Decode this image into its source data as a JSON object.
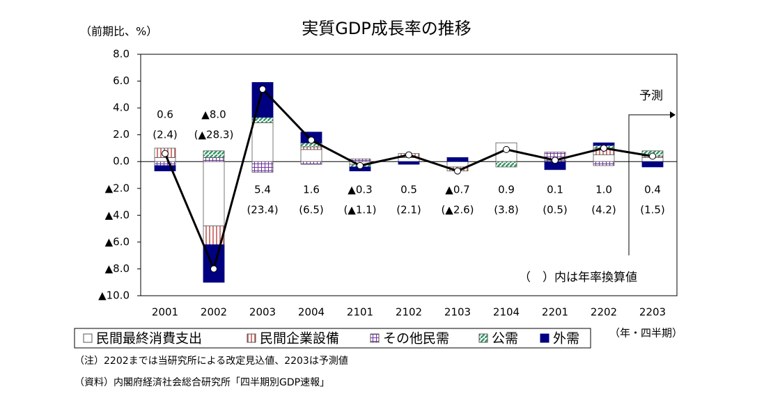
{
  "chart_data": {
    "type": "stacked_bar_line",
    "title": "実質GDP成長率の推移",
    "y_unit": "（前期比、%）",
    "x_unit": "（年・四半期）",
    "annotation": "（　）内は年率換算値",
    "forecast_label": "予測",
    "notes": [
      "（注）2202までは当研究所による改定見込値、2203は予測値",
      "（資料）内閣府経済社会総合研究所「四半期別GDP速報」"
    ],
    "categories": [
      "2001",
      "2002",
      "2003",
      "2004",
      "2101",
      "2102",
      "2103",
      "2104",
      "2201",
      "2202",
      "2203"
    ],
    "series": [
      {
        "name": "民間最終消費支出",
        "color": "#ffffff",
        "values": [
          0.3,
          -4.8,
          2.9,
          0.9,
          -0.2,
          0.3,
          -0.4,
          1.4,
          0.0,
          0.5,
          0.3
        ]
      },
      {
        "name": "民間企業設備",
        "color": "#c0504d",
        "values": [
          0.7,
          -1.4,
          0.0,
          0.2,
          0.0,
          0.3,
          -0.3,
          0.0,
          0.1,
          0.5,
          0.1
        ]
      },
      {
        "name": "その他民需",
        "color": "#7030a0",
        "values": [
          -0.3,
          0.3,
          -0.8,
          -0.2,
          0.2,
          0.0,
          0.0,
          0.0,
          0.6,
          -0.3,
          0.0
        ]
      },
      {
        "name": "公需",
        "color": "#339966",
        "values": [
          0.0,
          0.5,
          0.4,
          0.3,
          -0.2,
          0.0,
          0.0,
          -0.4,
          0.0,
          0.2,
          0.4
        ]
      },
      {
        "name": "外需",
        "color": "#000080",
        "values": [
          -0.4,
          -2.8,
          2.6,
          0.8,
          -0.3,
          -0.2,
          0.3,
          0.0,
          -0.6,
          0.2,
          -0.4
        ]
      }
    ],
    "gdp": {
      "color": "#000000",
      "values": [
        0.6,
        -8.0,
        5.4,
        1.6,
        -0.3,
        0.5,
        -0.7,
        0.9,
        0.1,
        1.0,
        0.4
      ],
      "value_labels": [
        "0.6",
        "▲8.0",
        "5.4",
        "1.6",
        "▲0.3",
        "0.5",
        "▲0.7",
        "0.9",
        "0.1",
        "1.0",
        "0.4"
      ]
    },
    "annualized_labels": [
      "(2.4)",
      "(▲28.3)",
      "(23.4)",
      "(6.5)",
      "(▲1.1)",
      "(2.1)",
      "(▲2.6)",
      "(3.8)",
      "(0.5)",
      "(4.2)",
      "(1.5)"
    ],
    "ylim": [
      -10,
      8
    ],
    "yticks": [
      {
        "value": -10,
        "label": "▲10.0"
      },
      {
        "value": -8,
        "label": "▲8.0"
      },
      {
        "value": -6,
        "label": "▲6.0"
      },
      {
        "value": -4,
        "label": "▲4.0"
      },
      {
        "value": -2,
        "label": "▲2.0"
      },
      {
        "value": 0,
        "label": "0.0"
      },
      {
        "value": 2,
        "label": "2.0"
      },
      {
        "value": 4,
        "label": "4.0"
      },
      {
        "value": 6,
        "label": "6.0"
      },
      {
        "value": 8,
        "label": "8.0"
      }
    ]
  }
}
